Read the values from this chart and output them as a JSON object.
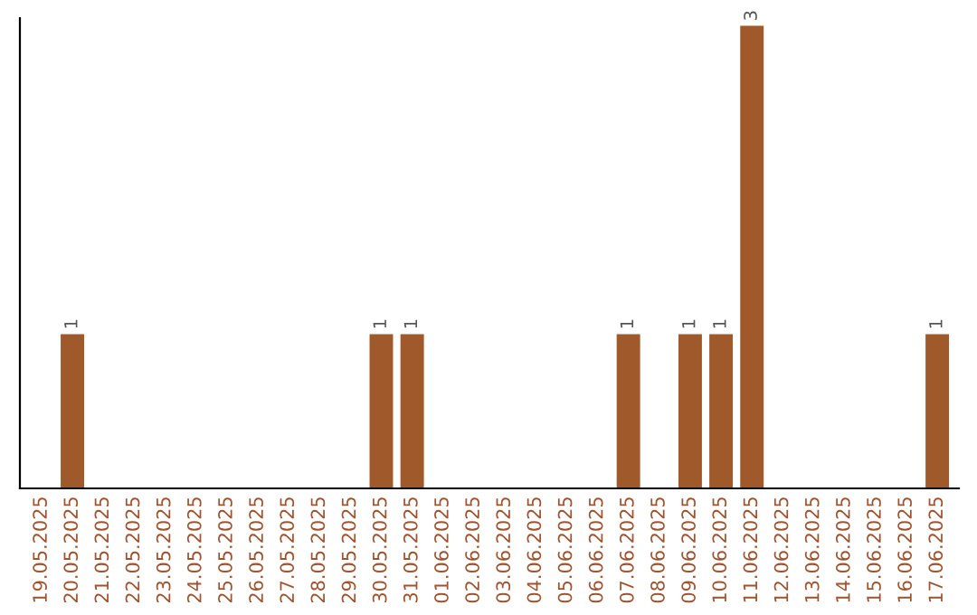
{
  "chart_data": {
    "type": "bar",
    "categories": [
      "19.05.2025",
      "20.05.2025",
      "21.05.2025",
      "22.05.2025",
      "23.05.2025",
      "24.05.2025",
      "25.05.2025",
      "26.05.2025",
      "27.05.2025",
      "28.05.2025",
      "29.05.2025",
      "30.05.2025",
      "31.05.2025",
      "01.06.2025",
      "02.06.2025",
      "03.06.2025",
      "04.06.2025",
      "05.06.2025",
      "06.06.2025",
      "07.06.2025",
      "08.06.2025",
      "09.06.2025",
      "10.06.2025",
      "11.06.2025",
      "12.06.2025",
      "13.06.2025",
      "14.06.2025",
      "15.06.2025",
      "16.06.2025",
      "17.06.2025"
    ],
    "values": [
      0,
      1,
      0,
      0,
      0,
      0,
      0,
      0,
      0,
      0,
      0,
      1,
      1,
      0,
      0,
      0,
      0,
      0,
      0,
      1,
      0,
      1,
      1,
      3,
      0,
      0,
      0,
      0,
      0,
      1
    ],
    "value_labels": [
      null,
      "1",
      null,
      null,
      null,
      null,
      null,
      null,
      null,
      null,
      null,
      "1",
      "1",
      null,
      null,
      null,
      null,
      null,
      null,
      "1",
      null,
      "1",
      "1",
      "3",
      null,
      null,
      null,
      null,
      null,
      "1"
    ],
    "color": "#a0592a",
    "ylim": [
      0,
      3.05
    ],
    "grid": false,
    "legend": false
  }
}
